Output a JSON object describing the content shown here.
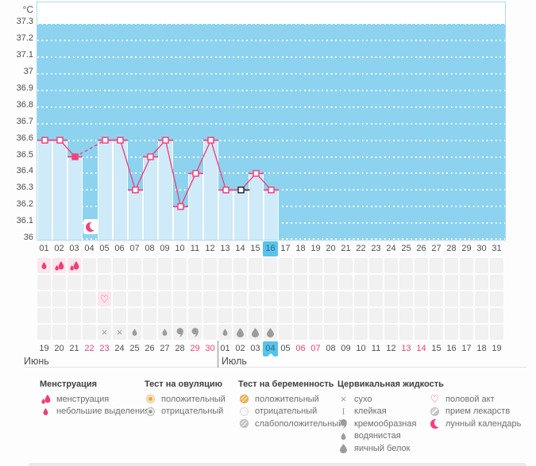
{
  "axis": {
    "unit": "°C",
    "yticks": [
      "36",
      "36.1",
      "36.2",
      "36.3",
      "36.4",
      "36.5",
      "36.6",
      "36.7",
      "36.8",
      "36.9",
      "37",
      "37.1",
      "37.2",
      "37.3"
    ]
  },
  "chart_data": {
    "type": "line",
    "ylabel": "°C",
    "ylim": [
      36,
      37.3
    ],
    "ytick_step": 0.1,
    "grid": "horizontal-white-dotted",
    "legend_position": "bottom",
    "categories": [
      "01",
      "02",
      "03",
      "04",
      "05",
      "06",
      "07",
      "08",
      "09",
      "10",
      "11",
      "12",
      "13",
      "14",
      "15",
      "16",
      "17",
      "18",
      "19",
      "20",
      "21",
      "22",
      "23",
      "24",
      "25",
      "26",
      "27",
      "28",
      "29",
      "30",
      "31"
    ],
    "series": [
      {
        "name": "temperature",
        "values": [
          36.6,
          36.6,
          36.5,
          null,
          36.6,
          36.6,
          36.3,
          36.5,
          36.6,
          36.2,
          36.4,
          36.6,
          36.3,
          36.3,
          36.4,
          36.3,
          null,
          null,
          null,
          null,
          null,
          null,
          null,
          null,
          null,
          null,
          null,
          null,
          null,
          null,
          null
        ]
      }
    ],
    "dashed_gap_indices": [
      2,
      4
    ],
    "filled_marker_index": 2,
    "cursor_marker_index": 13,
    "moon_icon_index": 3,
    "selected_day_index": 15
  },
  "day_row": {
    "labels": [
      "01",
      "02",
      "03",
      "04",
      "05",
      "06",
      "07",
      "08",
      "09",
      "10",
      "11",
      "12",
      "13",
      "14",
      "15",
      "16",
      "17",
      "18",
      "19",
      "20",
      "21",
      "22",
      "23",
      "24",
      "25",
      "26",
      "27",
      "28",
      "29",
      "30",
      "31"
    ],
    "selected_index": 15
  },
  "symptom_rows": [
    {
      "name": "menstruation-row",
      "pink": [
        0,
        1,
        2
      ],
      "icons": {
        "0": "spotting-drop",
        "1": "menses-drops",
        "2": "menses-drops"
      }
    },
    {
      "name": "ovulation-test-row",
      "pink": [],
      "icons": {}
    },
    {
      "name": "intercourse-row",
      "pink": [
        4
      ],
      "icons": {
        "4": "intercourse-heart"
      }
    },
    {
      "name": "pregnancy-test-row",
      "pink": [],
      "icons": {}
    },
    {
      "name": "cervical-fluid-row",
      "pink": [],
      "icons": {
        "4": "dry",
        "5": "dry",
        "6": "watery",
        "8": "watery",
        "9": "creamy",
        "10": "creamy",
        "12": "watery",
        "13": "eggwhite",
        "14": "eggwhite",
        "15": "eggwhite"
      }
    }
  ],
  "date_row": {
    "values": [
      "19",
      "20",
      "21",
      "22",
      "23",
      "24",
      "25",
      "26",
      "27",
      "28",
      "29",
      "30",
      "01",
      "02",
      "03",
      "04",
      "05",
      "06",
      "07",
      "08",
      "09",
      "10",
      "11",
      "12",
      "13",
      "14",
      "15",
      "16",
      "17",
      "18",
      "19"
    ],
    "weekend_indices": [
      3,
      4,
      10,
      11,
      17,
      18,
      24,
      25
    ],
    "selected_index": 15
  },
  "months": [
    {
      "label": "Июнь",
      "from": 0,
      "to": 11
    },
    {
      "label": "Июль",
      "from": 12,
      "to": 30
    }
  ],
  "legend": {
    "sections": [
      {
        "title": "Менструация",
        "items": [
          {
            "icon": "menses-drops",
            "label": "менструация"
          },
          {
            "icon": "spotting-drop",
            "label": "небольшие выделения"
          }
        ]
      },
      {
        "title": "Тест на овуляцию",
        "items": [
          {
            "icon": "ovulation-positive",
            "label": "положительный"
          },
          {
            "icon": "ovulation-negative",
            "label": "отрицательный"
          }
        ]
      },
      {
        "title": "Тест на беременность",
        "items": [
          {
            "icon": "pregnancy-positive",
            "label": "положительный"
          },
          {
            "icon": "pregnancy-negative",
            "label": "отрицательный"
          },
          {
            "icon": "pregnancy-weak",
            "label": "слабоположительный"
          }
        ]
      },
      {
        "title": "Цервикальная жидкость",
        "items": [
          {
            "icon": "dry",
            "label": "сухо"
          },
          {
            "icon": "sticky",
            "label": "клейкая"
          },
          {
            "icon": "creamy",
            "label": "кремообразная"
          },
          {
            "icon": "watery",
            "label": "водянистая"
          },
          {
            "icon": "eggwhite",
            "label": "яичный белок"
          }
        ]
      },
      {
        "title": "",
        "items": [
          {
            "icon": "intercourse-heart",
            "label": "половой акт"
          },
          {
            "icon": "pill",
            "label": "прием лекарств"
          },
          {
            "icon": "moon",
            "label": "лунный календарь"
          }
        ]
      }
    ]
  },
  "colors": {
    "plot_background": "#8dd3f0",
    "measured_column": "#cfeaf8",
    "temperature_line": "#f2427d",
    "selected_day_highlight": "#57c3ee",
    "weekend_date": "#f2427d",
    "symptom_cell": "#f1f1f1",
    "symptom_cell_pink": "#fbe6ee",
    "icon_gray": "#9c9c9c"
  }
}
